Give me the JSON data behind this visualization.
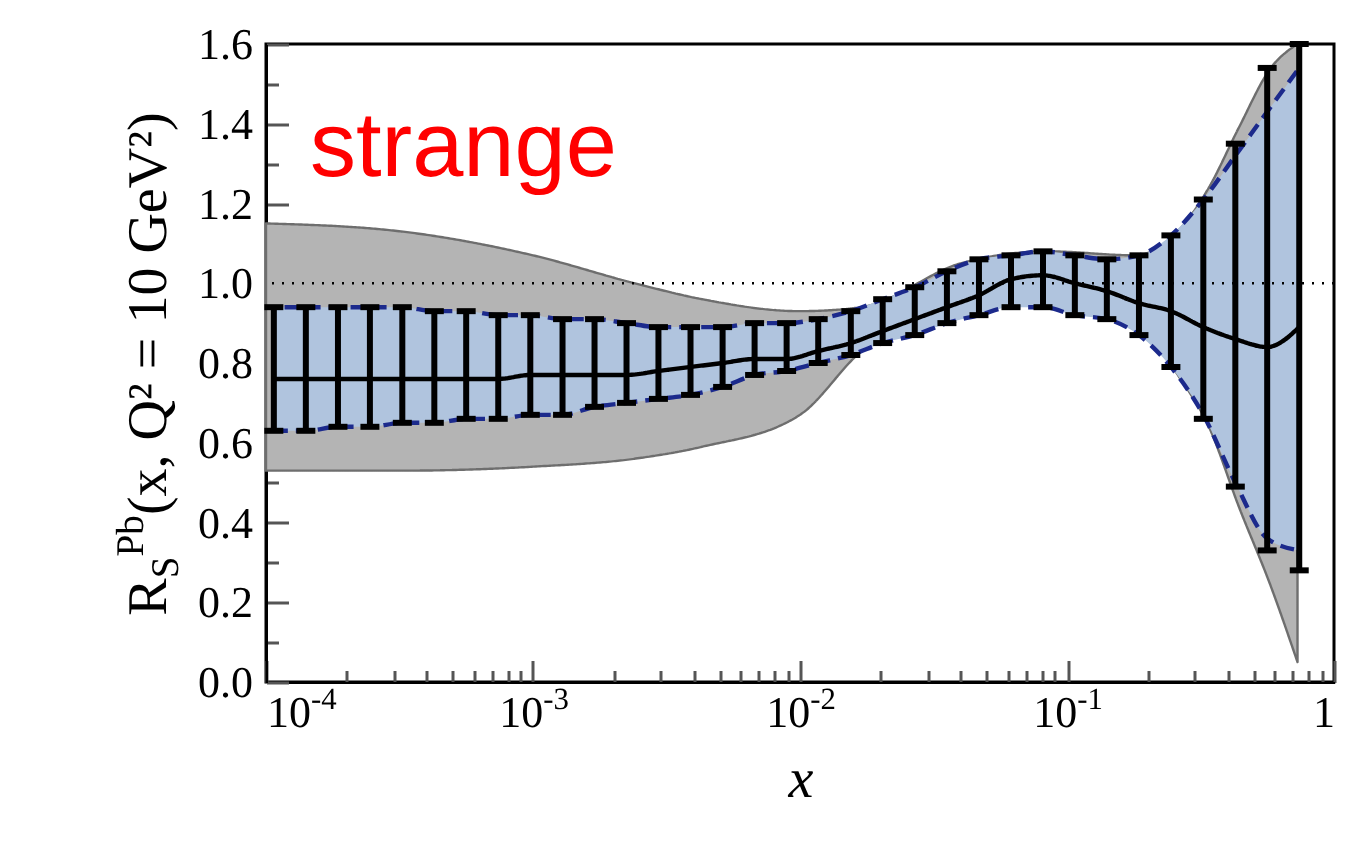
{
  "chart_data": {
    "type": "line",
    "xlabel": "x",
    "ylabel": "R$_{S}$$^{Pb}$(x, Q² = 10 GeV²)",
    "annotations": [
      "strange"
    ],
    "log": "x",
    "xlim": [
      0.0001,
      1
    ],
    "ylim": [
      0,
      1.6
    ],
    "xticks": [
      {
        "value": 0.0001,
        "label": "10$^{-4}$"
      },
      {
        "value": 0.0002,
        "label": null
      },
      {
        "value": 0.0003,
        "label": null
      },
      {
        "value": 0.0004,
        "label": null
      },
      {
        "value": 0.0005,
        "label": null
      },
      {
        "value": 0.0006,
        "label": null
      },
      {
        "value": 0.0007,
        "label": null
      },
      {
        "value": 0.0008,
        "label": null
      },
      {
        "value": 0.0009,
        "label": null
      },
      {
        "value": 0.001,
        "label": "10$^{-3}$"
      },
      {
        "value": 0.002,
        "label": null
      },
      {
        "value": 0.003,
        "label": null
      },
      {
        "value": 0.004,
        "label": null
      },
      {
        "value": 0.005,
        "label": null
      },
      {
        "value": 0.006,
        "label": null
      },
      {
        "value": 0.007,
        "label": null
      },
      {
        "value": 0.008,
        "label": null
      },
      {
        "value": 0.009,
        "label": null
      },
      {
        "value": 0.01,
        "label": "10$^{-2}$"
      },
      {
        "value": 0.02,
        "label": null
      },
      {
        "value": 0.03,
        "label": null
      },
      {
        "value": 0.04,
        "label": null
      },
      {
        "value": 0.05,
        "label": null
      },
      {
        "value": 0.06,
        "label": null
      },
      {
        "value": 0.07,
        "label": null
      },
      {
        "value": 0.08,
        "label": null
      },
      {
        "value": 0.09,
        "label": null
      },
      {
        "value": 0.1,
        "label": "10$^{-1}$"
      },
      {
        "value": 0.2,
        "label": null
      },
      {
        "value": 0.3,
        "label": null
      },
      {
        "value": 0.4,
        "label": null
      },
      {
        "value": 0.5,
        "label": null
      },
      {
        "value": 0.6,
        "label": null
      },
      {
        "value": 0.7,
        "label": null
      },
      {
        "value": 0.8,
        "label": null
      },
      {
        "value": 0.9,
        "label": null
      },
      1
    ],
    "yticks": [
      {
        "value": 0,
        "label": "0.0"
      },
      {
        "value": 0.1,
        "label": null
      },
      0.2,
      {
        "value": 0.3,
        "label": null
      },
      0.4,
      {
        "value": 0.5,
        "label": null
      },
      0.6,
      {
        "value": 0.7,
        "label": null
      },
      0.8,
      {
        "value": 0.9,
        "label": null
      },
      {
        "value": 1,
        "label": "1.0"
      },
      {
        "value": 1.1,
        "label": null
      },
      1.2,
      {
        "value": 1.3,
        "label": null
      },
      1.4,
      {
        "value": 1.5,
        "label": null
      },
      1.6
    ],
    "ref_lines": [
      {
        "axis": "y",
        "value": 1,
        "line_style": "dotted"
      }
    ],
    "series": [
      {
        "type": "area",
        "color": "#b4b4b4",
        "x": [
          0.0001,
          0.00032,
          0.001,
          0.0024,
          0.0043,
          0.01,
          0.017,
          0.04,
          0.085,
          0.18,
          0.26,
          0.34,
          0.44,
          0.58,
          0.73
        ],
        "values": [
          null,
          null,
          null,
          null,
          null,
          null,
          null,
          null,
          null,
          null,
          null,
          null,
          null,
          null,
          null
        ],
        "lower": [
          0.53,
          0.53,
          0.54,
          0.56,
          0.59,
          0.67,
          0.83,
          0.95,
          0.97,
          0.91,
          0.77,
          0.64,
          0.44,
          0.24,
          0.05
        ],
        "upper": [
          1.15,
          1.13,
          1.07,
          1.0,
          0.96,
          0.93,
          0.94,
          1.05,
          1.08,
          1.07,
          1.13,
          1.24,
          1.39,
          1.54,
          1.6
        ]
      },
      {
        "color": "#000000",
        "line_style": "dashed",
        "lower": [
          0.63,
          0.63,
          0.64,
          0.64,
          0.65,
          0.65,
          0.66,
          0.66,
          0.67,
          0.67,
          0.69,
          0.7,
          0.71,
          0.72,
          0.74,
          0.77,
          0.78,
          0.8,
          0.82,
          0.85,
          0.87,
          0.9,
          0.92,
          0.94,
          0.94,
          0.92,
          0.91,
          0.87,
          0.79,
          0.67,
          0.5,
          0.36,
          0.33
        ],
        "upper": [
          0.94,
          0.94,
          0.94,
          0.94,
          0.94,
          0.93,
          0.93,
          0.92,
          0.92,
          0.91,
          0.91,
          0.9,
          0.89,
          0.89,
          0.89,
          0.9,
          0.9,
          0.91,
          0.93,
          0.96,
          0.99,
          1.03,
          1.06,
          1.07,
          1.08,
          1.07,
          1.06,
          1.07,
          1.12,
          1.21,
          1.32,
          1.43,
          1.54
        ],
        "x": [
          0.000107,
          0.000141,
          0.000186,
          0.000245,
          0.000324,
          0.000427,
          0.000562,
          0.000741,
          0.000977,
          0.00129,
          0.0017,
          0.00224,
          0.00295,
          0.00389,
          0.00513,
          0.00676,
          0.00891,
          0.0117,
          0.0155,
          0.0204,
          0.0269,
          0.0355,
          0.0468,
          0.0617,
          0.0813,
          0.107,
          0.141,
          0.186,
          0.245,
          0.324,
          0.427,
          0.562,
          0.741
        ],
        "values": [
          0.76,
          0.76,
          0.76,
          0.76,
          0.76,
          0.76,
          0.76,
          0.76,
          0.77,
          0.77,
          0.77,
          0.77,
          0.78,
          0.79,
          0.8,
          0.81,
          0.81,
          0.83,
          0.85,
          0.88,
          0.91,
          0.94,
          0.97,
          1.01,
          1.02,
          1.0,
          0.98,
          0.95,
          0.93,
          0.89,
          0.86,
          0.84,
          0.89
        ],
        "errors": [
          [
            0.63,
            0.94
          ],
          [
            0.63,
            0.94
          ],
          [
            0.64,
            0.94
          ],
          [
            0.64,
            0.94
          ],
          [
            0.65,
            0.94
          ],
          [
            0.65,
            0.93
          ],
          [
            0.66,
            0.93
          ],
          [
            0.66,
            0.92
          ],
          [
            0.67,
            0.92
          ],
          [
            0.67,
            0.91
          ],
          [
            0.69,
            0.91
          ],
          [
            0.7,
            0.9
          ],
          [
            0.71,
            0.89
          ],
          [
            0.72,
            0.89
          ],
          [
            0.74,
            0.89
          ],
          [
            0.77,
            0.9
          ],
          [
            0.78,
            0.9
          ],
          [
            0.8,
            0.91
          ],
          [
            0.82,
            0.93
          ],
          [
            0.85,
            0.96
          ],
          [
            0.87,
            0.99
          ],
          [
            0.9,
            1.03
          ],
          [
            0.92,
            1.06
          ],
          [
            0.94,
            1.07
          ],
          [
            0.94,
            1.08
          ],
          [
            0.92,
            1.07
          ],
          [
            0.91,
            1.06
          ],
          [
            0.87,
            1.07
          ],
          [
            0.79,
            1.12
          ],
          [
            0.66,
            1.21
          ],
          [
            0.49,
            1.35
          ],
          [
            0.33,
            1.54
          ],
          [
            0.28,
            1.6
          ]
        ]
      }
    ]
  }
}
